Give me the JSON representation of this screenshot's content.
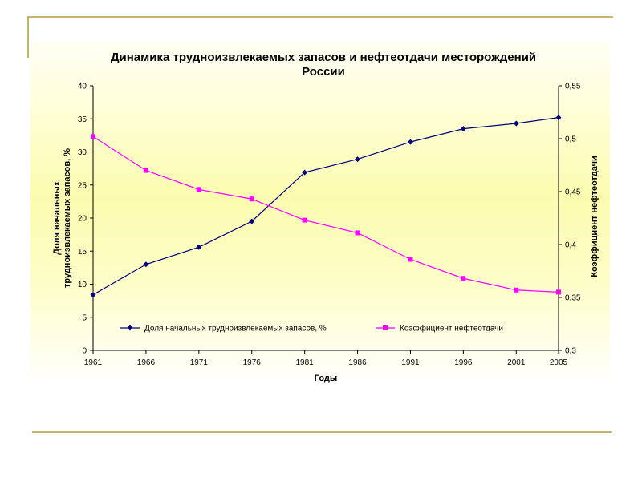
{
  "chart_data": {
    "type": "line",
    "title_line1": "Динамика трудноизвлекаемых запасов и нефтеотдачи месторождений",
    "title_line2": "России",
    "xlabel": "Годы",
    "ylabel_left_line1": "Доля начальных",
    "ylabel_left_line2": "трудноизвлекаемых запасов, %",
    "ylabel_right": "Коэффициент нефтеотдачи",
    "x": [
      1961,
      1966,
      1971,
      1976,
      1981,
      1986,
      1991,
      1996,
      2001,
      2005
    ],
    "x_ticks": [
      "1961",
      "1966",
      "1971",
      "1976",
      "1981",
      "1986",
      "1991",
      "1996",
      "2001",
      "2005"
    ],
    "y_left_ticks": [
      "0",
      "5",
      "10",
      "15",
      "20",
      "25",
      "30",
      "35",
      "40"
    ],
    "y_right_ticks": [
      "0,3",
      "0,35",
      "0,4",
      "0,45",
      "0,5",
      "0,55"
    ],
    "ylim_left": [
      0,
      40
    ],
    "ylim_right": [
      0.3,
      0.55
    ],
    "legend_position": "bottom-center-inside",
    "grid": false,
    "series": [
      {
        "name": "Доля начальных  трудноизвлекаемых запасов, %",
        "axis": "left",
        "color": "#000080",
        "marker": "diamond",
        "values": [
          8.4,
          13.0,
          15.6,
          19.5,
          26.9,
          28.9,
          31.5,
          33.5,
          34.3,
          35.2
        ]
      },
      {
        "name": "Коэффициент нефтеотдачи",
        "axis": "right",
        "color": "#ff00ff",
        "marker": "square",
        "values": [
          0.502,
          0.47,
          0.452,
          0.443,
          0.423,
          0.411,
          0.386,
          0.368,
          0.357,
          0.355
        ]
      }
    ]
  }
}
